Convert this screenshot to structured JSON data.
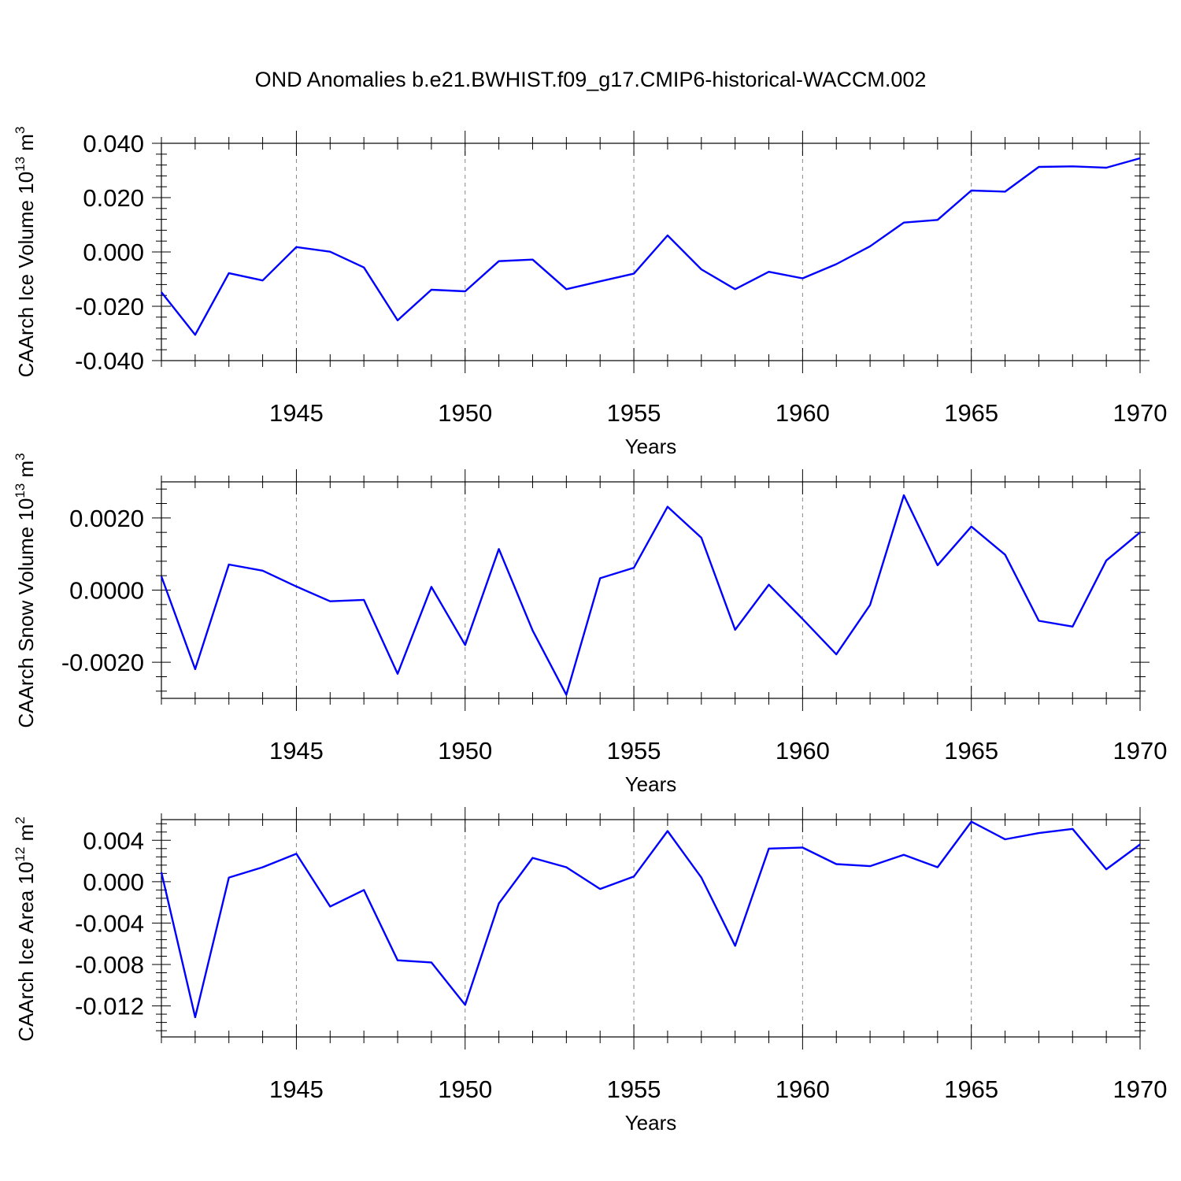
{
  "figure": {
    "title": "OND Anomalies b.e21.BWHIST.f09_g17.CMIP6-historical-WACCM.002"
  },
  "style": {
    "line_color": "#0000ff",
    "grid_color": "#888888",
    "axis_color": "#000000"
  },
  "chart_data": [
    {
      "type": "line",
      "title": "OND Anomalies b.e21.BWHIST.f09_g17.CMIP6-historical-WACCM.002",
      "xlabel": "Years",
      "ylabel": "CAArch Ice Volume 10",
      "ylabel_exp": "13",
      "ylabel_unit": " m",
      "ylabel_unit_exp": "3",
      "xlim": [
        1941,
        1970
      ],
      "ylim": [
        -0.04,
        0.04
      ],
      "xticks": [
        "1945",
        "1950",
        "1955",
        "1960",
        "1965",
        "1970"
      ],
      "yticks": [
        {
          "value": 0.04,
          "label": "0.040"
        },
        {
          "value": 0.02,
          "label": "0.020"
        },
        {
          "value": 0.0,
          "label": "0.000"
        },
        {
          "value": -0.02,
          "label": "-0.020"
        },
        {
          "value": -0.04,
          "label": "-0.040"
        }
      ],
      "grid": "vertical dashed at major x ticks",
      "series": [
        {
          "x": [
            1941,
            1942,
            1943,
            1944,
            1945,
            1946,
            1947,
            1948,
            1949,
            1950,
            1951,
            1952,
            1953,
            1954,
            1955,
            1956,
            1957,
            1958,
            1959,
            1960,
            1961,
            1962,
            1963,
            1964,
            1965,
            1966,
            1967,
            1968,
            1969,
            1970
          ],
          "values": [
            -0.0148,
            -0.0305,
            -0.0078,
            -0.0105,
            0.0018,
            0.0001,
            -0.0057,
            -0.0252,
            -0.0139,
            -0.0145,
            -0.0034,
            -0.0028,
            -0.0137,
            -0.0108,
            -0.008,
            0.0061,
            -0.0064,
            -0.0137,
            -0.0073,
            -0.0097,
            -0.0045,
            0.0021,
            0.0108,
            0.0118,
            0.0226,
            0.0222,
            0.0313,
            0.0315,
            0.031,
            0.0345
          ]
        }
      ]
    },
    {
      "type": "line",
      "xlabel": "Years",
      "ylabel": "CAArch Snow Volume 10",
      "ylabel_exp": "13",
      "ylabel_unit": " m",
      "ylabel_unit_exp": "3",
      "xlim": [
        1941,
        1970
      ],
      "ylim": [
        -0.003,
        0.003
      ],
      "xticks": [
        "1945",
        "1950",
        "1955",
        "1960",
        "1965",
        "1970"
      ],
      "yticks": [
        {
          "value": 0.002,
          "label": "0.0020"
        },
        {
          "value": 0.0,
          "label": "0.0000"
        },
        {
          "value": -0.002,
          "label": "-0.0020"
        }
      ],
      "grid": "vertical dashed at major x ticks",
      "series": [
        {
          "x": [
            1941,
            1942,
            1943,
            1944,
            1945,
            1946,
            1947,
            1948,
            1949,
            1950,
            1951,
            1952,
            1953,
            1954,
            1955,
            1956,
            1957,
            1958,
            1959,
            1960,
            1961,
            1962,
            1963,
            1964,
            1965,
            1966,
            1967,
            1968,
            1969,
            1970
          ],
          "values": [
            0.00038,
            -0.00219,
            0.00071,
            0.00054,
            0.0001,
            -0.00031,
            -0.00027,
            -0.00232,
            9e-05,
            -0.00152,
            0.00114,
            -0.00112,
            -0.0029,
            0.00033,
            0.00062,
            0.00231,
            0.00145,
            -0.0011,
            0.00015,
            -0.0008,
            -0.00178,
            -0.00041,
            0.00263,
            0.00069,
            0.00176,
            0.00098,
            -0.00085,
            -0.00101,
            0.00082,
            0.0016
          ]
        }
      ]
    },
    {
      "type": "line",
      "xlabel": "Years",
      "ylabel": "CAArch Ice Area 10",
      "ylabel_exp": "12",
      "ylabel_unit": " m",
      "ylabel_unit_exp": "2",
      "xlim": [
        1941,
        1970
      ],
      "ylim": [
        -0.015,
        0.006
      ],
      "xticks": [
        "1945",
        "1950",
        "1955",
        "1960",
        "1965",
        "1970"
      ],
      "yticks": [
        {
          "value": 0.004,
          "label": "0.004"
        },
        {
          "value": 0.0,
          "label": "0.000"
        },
        {
          "value": -0.004,
          "label": "-0.004"
        },
        {
          "value": -0.008,
          "label": "-0.008"
        },
        {
          "value": -0.012,
          "label": "-0.012"
        }
      ],
      "grid": "vertical dashed at major x ticks",
      "series": [
        {
          "x": [
            1941,
            1942,
            1943,
            1944,
            1945,
            1946,
            1947,
            1948,
            1949,
            1950,
            1951,
            1952,
            1953,
            1954,
            1955,
            1956,
            1957,
            1958,
            1959,
            1960,
            1961,
            1962,
            1963,
            1964,
            1965,
            1966,
            1967,
            1968,
            1969,
            1970
          ],
          "values": [
            0.0009,
            -0.0131,
            0.0004,
            0.0014,
            0.0027,
            -0.0024,
            -0.0008,
            -0.0076,
            -0.0078,
            -0.0119,
            -0.0021,
            0.0023,
            0.0014,
            -0.0007,
            0.0005,
            0.0049,
            0.0004,
            -0.0062,
            0.0032,
            0.0033,
            0.0017,
            0.0015,
            0.0026,
            0.0014,
            0.0058,
            0.0041,
            0.0047,
            0.0051,
            0.0012,
            0.0036
          ]
        }
      ]
    }
  ]
}
